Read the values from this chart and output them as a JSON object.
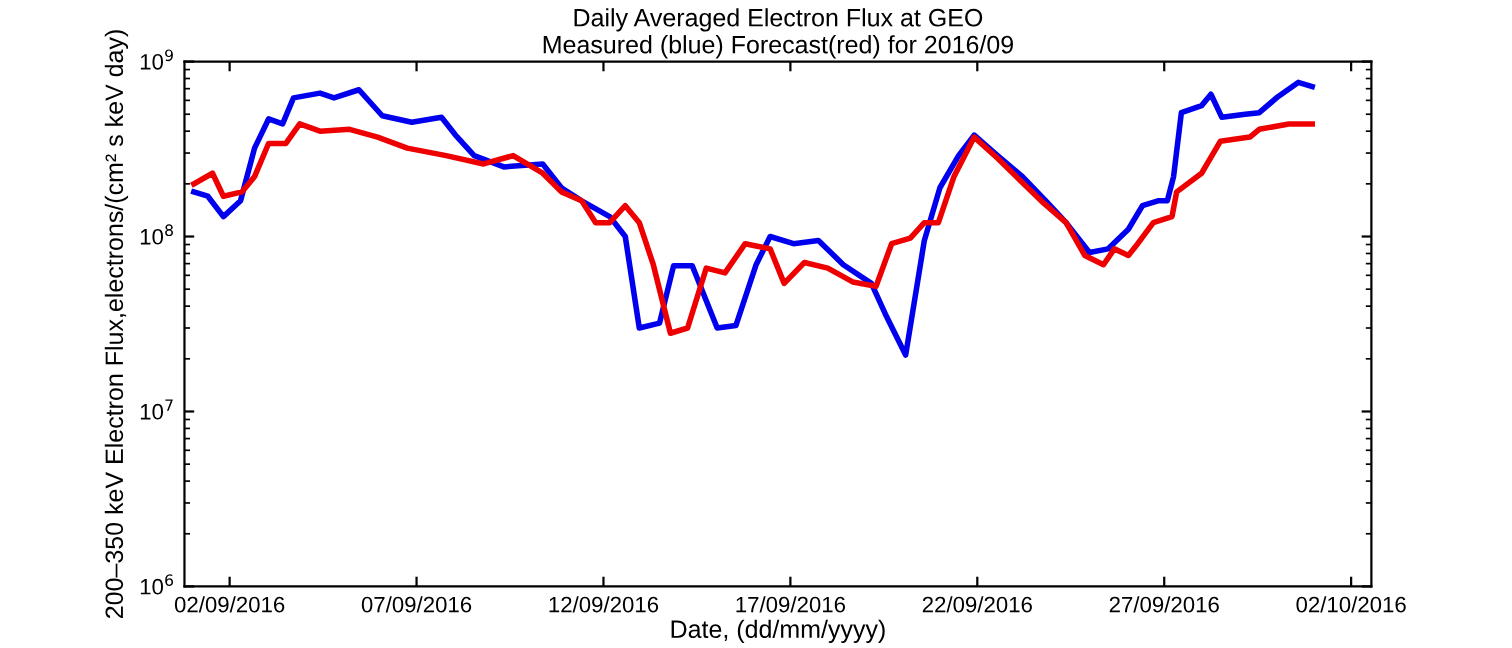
{
  "chart_data": {
    "type": "line",
    "title": "Daily Averaged Electron Flux at GEO",
    "subtitle": "Measured (blue) Forecast(red) for 2016/09",
    "xlabel": "Date, (dd/mm/yyyy)",
    "ylabel": "200–350 keV Electron Flux,electrons/(cm² s keV day)",
    "log": "y",
    "grid": false,
    "legend": false,
    "line_style": "solid",
    "marker": "none",
    "xlim": [
      "2016-08-31T19:00",
      "2016-10-02T13:00"
    ],
    "xticks": [
      {
        "value": "2016-09-02",
        "label": "02/09/2016"
      },
      {
        "value": "2016-09-07",
        "label": "07/09/2016"
      },
      {
        "value": "2016-09-12",
        "label": "12/09/2016"
      },
      {
        "value": "2016-09-17",
        "label": "17/09/2016"
      },
      {
        "value": "2016-09-22",
        "label": "22/09/2016"
      },
      {
        "value": "2016-09-27",
        "label": "27/09/2016"
      },
      {
        "value": "2016-10-02",
        "label": "02/10/2016"
      }
    ],
    "ylim": [
      1000000,
      1000000000
    ],
    "yticks": [
      {
        "value": 1000000,
        "label": "10$^{6}$"
      },
      {
        "value": 10000000,
        "label": "10$^{7}$"
      },
      {
        "value": 100000000,
        "label": "10$^{8}$"
      },
      {
        "value": 1000000000,
        "label": "10$^{9}$"
      }
    ],
    "series": [
      {
        "color": "#0000ee",
        "x": [
          "2016-09-01T01:00",
          "2016-09-01T10:00",
          "2016-09-01T20:00",
          "2016-09-02T07:00",
          "2016-09-02T16:00",
          "2016-09-03T01:00",
          "2016-09-03T10:00",
          "2016-09-03T17:00",
          "2016-09-04T10:00",
          "2016-09-04T19:00",
          "2016-09-05T11:00",
          "2016-09-06T02:00",
          "2016-09-06T21:00",
          "2016-09-07T16:00",
          "2016-09-08T01:00",
          "2016-09-08T13:00",
          "2016-09-09T08:00",
          "2016-09-10T09:00",
          "2016-09-10T21:00",
          "2016-09-11T10:00",
          "2016-09-12T04:00",
          "2016-09-12T14:00",
          "2016-09-12T23:00",
          "2016-09-13T12:00",
          "2016-09-13T21:00",
          "2016-09-14T09:00",
          "2016-09-15T01:00",
          "2016-09-15T13:00",
          "2016-09-16T02:00",
          "2016-09-16T11:00",
          "2016-09-17T02:00",
          "2016-09-17T18:00",
          "2016-09-18T10:00",
          "2016-09-19T04:00",
          "2016-09-19T13:00",
          "2016-09-20T02:00",
          "2016-09-20T14:00",
          "2016-09-21T00:00",
          "2016-09-21T12:00",
          "2016-09-21T22:00",
          "2016-09-22T13:00",
          "2016-09-23T05:00",
          "2016-09-23T20:00",
          "2016-09-24T09:00",
          "2016-09-25T00:00",
          "2016-09-25T12:00",
          "2016-09-26T01:00",
          "2016-09-26T10:00",
          "2016-09-26T20:00",
          "2016-09-27T02:00",
          "2016-09-27T06:00",
          "2016-09-27T11:00",
          "2016-09-28T00:00",
          "2016-09-28T06:00",
          "2016-09-28T13:00",
          "2016-09-29T04:00",
          "2016-09-29T13:00",
          "2016-09-30T01:00",
          "2016-09-30T14:00",
          "2016-09-30T23:00"
        ],
        "values": [
          180000000.0,
          170000000.0,
          130000000.0,
          160000000.0,
          320000000.0,
          470000000.0,
          440000000.0,
          620000000.0,
          660000000.0,
          620000000.0,
          690000000.0,
          490000000.0,
          450000000.0,
          480000000.0,
          380000000.0,
          290000000.0,
          250000000.0,
          260000000.0,
          190000000.0,
          160000000.0,
          130000000.0,
          100000000.0,
          30000000.0,
          32000000.0,
          68000000.0,
          68000000.0,
          30000000.0,
          31000000.0,
          69000000.0,
          100000000.0,
          91000000.0,
          95000000.0,
          69000000.0,
          54000000.0,
          36000000.0,
          21000000.0,
          95000000.0,
          190000000.0,
          290000000.0,
          380000000.0,
          290000000.0,
          220000000.0,
          160000000.0,
          120000000.0,
          81000000.0,
          85000000.0,
          110000000.0,
          150000000.0,
          160000000.0,
          160000000.0,
          220000000.0,
          510000000.0,
          560000000.0,
          650000000.0,
          480000000.0,
          500000000.0,
          510000000.0,
          630000000.0,
          760000000.0,
          720000000.0
        ]
      },
      {
        "color": "#ee0000",
        "x": [
          "2016-09-01T01:00",
          "2016-09-01T13:00",
          "2016-09-01T20:00",
          "2016-09-02T08:00",
          "2016-09-02T16:00",
          "2016-09-03T01:00",
          "2016-09-03T12:00",
          "2016-09-03T21:00",
          "2016-09-04T10:00",
          "2016-09-05T05:00",
          "2016-09-05T23:00",
          "2016-09-06T18:00",
          "2016-09-07T19:00",
          "2016-09-08T19:00",
          "2016-09-09T14:00",
          "2016-09-10T09:00",
          "2016-09-10T21:00",
          "2016-09-11T10:00",
          "2016-09-11T19:00",
          "2016-09-12T04:00",
          "2016-09-12T14:00",
          "2016-09-12T23:00",
          "2016-09-13T08:00",
          "2016-09-13T19:00",
          "2016-09-14T06:00",
          "2016-09-14T18:00",
          "2016-09-15T06:00",
          "2016-09-15T19:00",
          "2016-09-16T11:00",
          "2016-09-16T20:00",
          "2016-09-17T09:00",
          "2016-09-18T00:00",
          "2016-09-18T16:00",
          "2016-09-19T07:00",
          "2016-09-19T17:00",
          "2016-09-20T05:00",
          "2016-09-20T14:00",
          "2016-09-20T23:00",
          "2016-09-21T09:00",
          "2016-09-21T22:00",
          "2016-09-22T13:00",
          "2016-09-23T01:00",
          "2016-09-23T17:00",
          "2016-09-24T09:00",
          "2016-09-24T21:00",
          "2016-09-25T09:00",
          "2016-09-25T16:00",
          "2016-09-26T01:00",
          "2016-09-26T07:00",
          "2016-09-26T17:00",
          "2016-09-27T05:00",
          "2016-09-27T08:00",
          "2016-09-28T00:00",
          "2016-09-28T12:00",
          "2016-09-29T07:00",
          "2016-09-29T13:00",
          "2016-09-30T08:00",
          "2016-09-30T23:00"
        ],
        "values": [
          200000000.0,
          230000000.0,
          170000000.0,
          180000000.0,
          220000000.0,
          340000000.0,
          340000000.0,
          440000000.0,
          400000000.0,
          410000000.0,
          370000000.0,
          320000000.0,
          290000000.0,
          260000000.0,
          290000000.0,
          230000000.0,
          180000000.0,
          160000000.0,
          120000000.0,
          120000000.0,
          150000000.0,
          120000000.0,
          69000000.0,
          28000000.0,
          30000000.0,
          66000000.0,
          62000000.0,
          91000000.0,
          85000000.0,
          54000000.0,
          71000000.0,
          66000000.0,
          55000000.0,
          52000000.0,
          91000000.0,
          98000000.0,
          120000000.0,
          120000000.0,
          220000000.0,
          370000000.0,
          280000000.0,
          220000000.0,
          160000000.0,
          120000000.0,
          78000000.0,
          69000000.0,
          85000000.0,
          78000000.0,
          91000000.0,
          120000000.0,
          130000000.0,
          180000000.0,
          230000000.0,
          350000000.0,
          370000000.0,
          410000000.0,
          440000000.0,
          440000000.0
        ]
      }
    ]
  }
}
